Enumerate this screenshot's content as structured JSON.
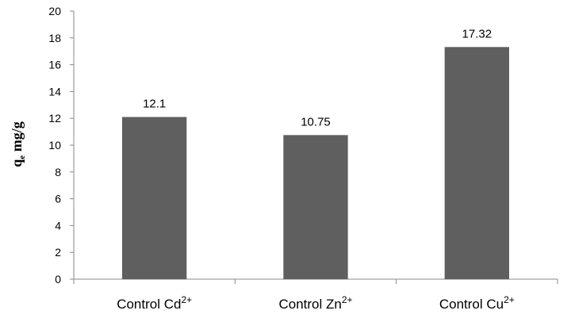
{
  "chart_data": {
    "type": "bar",
    "categories": [
      {
        "base": "Control Cd",
        "sup": "2+"
      },
      {
        "base": "Control Zn",
        "sup": "2+"
      },
      {
        "base": "Control Cu",
        "sup": "2+"
      }
    ],
    "values": [
      12.1,
      10.75,
      17.32
    ],
    "data_labels": [
      "12.1",
      "10.75",
      "17.32"
    ],
    "ylabel": {
      "main": "q",
      "sub": "e",
      "rest": " mg/g"
    },
    "ylim": [
      0,
      20
    ],
    "yticks": [
      "0",
      "2",
      "4",
      "6",
      "8",
      "10",
      "12",
      "14",
      "16",
      "18",
      "20"
    ],
    "grid": false,
    "legend": "none",
    "bar_color": "#5f5f5f",
    "axis_color": "#888888"
  }
}
